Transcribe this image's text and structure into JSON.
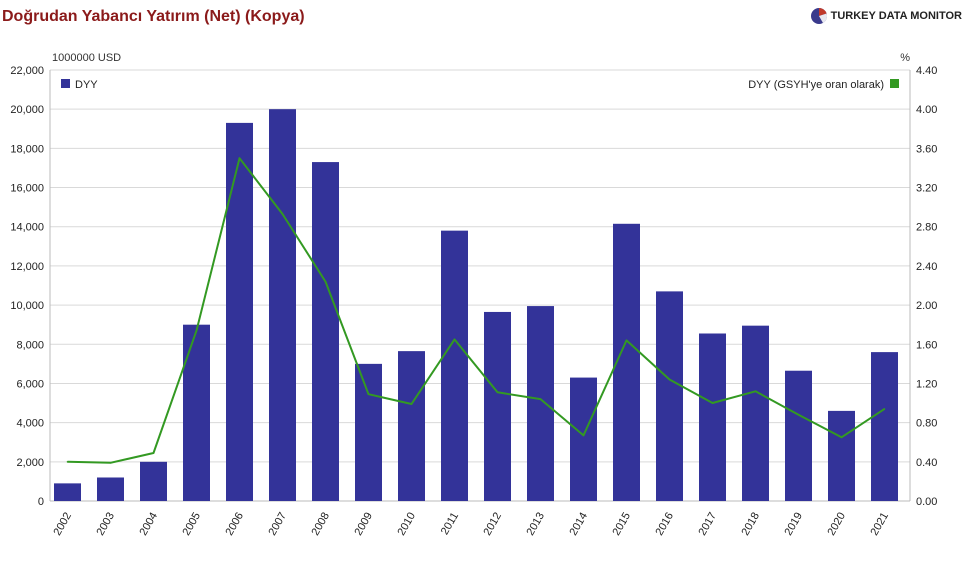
{
  "header": {
    "title": "Doğrudan Yabancı Yatırım (Net) (Kopya)",
    "brand": "TURKEY DATA MONITOR"
  },
  "colors": {
    "bar": "#333399",
    "line": "#339922",
    "title": "#8b1a1a",
    "grid": "#d9d9d9"
  },
  "chart_data": {
    "type": "bar",
    "title": "Doğrudan Yabancı Yatırım (Net) (Kopya)",
    "categories": [
      "2002",
      "2003",
      "2004",
      "2005",
      "2006",
      "2007",
      "2008",
      "2009",
      "2010",
      "2011",
      "2012",
      "2013",
      "2014",
      "2015",
      "2016",
      "2017",
      "2018",
      "2019",
      "2020",
      "2021"
    ],
    "y_unit_left": "1000000 USD",
    "y_unit_right": "%",
    "ylim_left": [
      0,
      22000
    ],
    "ylim_right": [
      0,
      4.4
    ],
    "yticks_left": [
      "0",
      "2,000",
      "4,000",
      "6,000",
      "8,000",
      "10,000",
      "12,000",
      "14,000",
      "16,000",
      "18,000",
      "20,000",
      "22,000"
    ],
    "yticks_right": [
      "0.00",
      "0.40",
      "0.80",
      "1.20",
      "1.60",
      "2.00",
      "2.40",
      "2.80",
      "3.20",
      "3.60",
      "4.00",
      "4.40"
    ],
    "grid": true,
    "legend_placement": "top",
    "series": [
      {
        "name": "DYY",
        "type": "bar",
        "axis": "left",
        "values": [
          900,
          1200,
          2000,
          9000,
          19300,
          20000,
          17300,
          7000,
          7650,
          13800,
          9650,
          9950,
          6300,
          14150,
          10700,
          8550,
          8950,
          6650,
          4600,
          7600
        ]
      },
      {
        "name": "DYY (GSYH'ye oran olarak)",
        "type": "line",
        "axis": "right",
        "values": [
          0.4,
          0.39,
          0.49,
          1.74,
          3.5,
          2.93,
          2.24,
          1.09,
          0.99,
          1.65,
          1.11,
          1.04,
          0.67,
          1.64,
          1.24,
          1.0,
          1.12,
          0.88,
          0.65,
          0.94
        ]
      }
    ]
  }
}
